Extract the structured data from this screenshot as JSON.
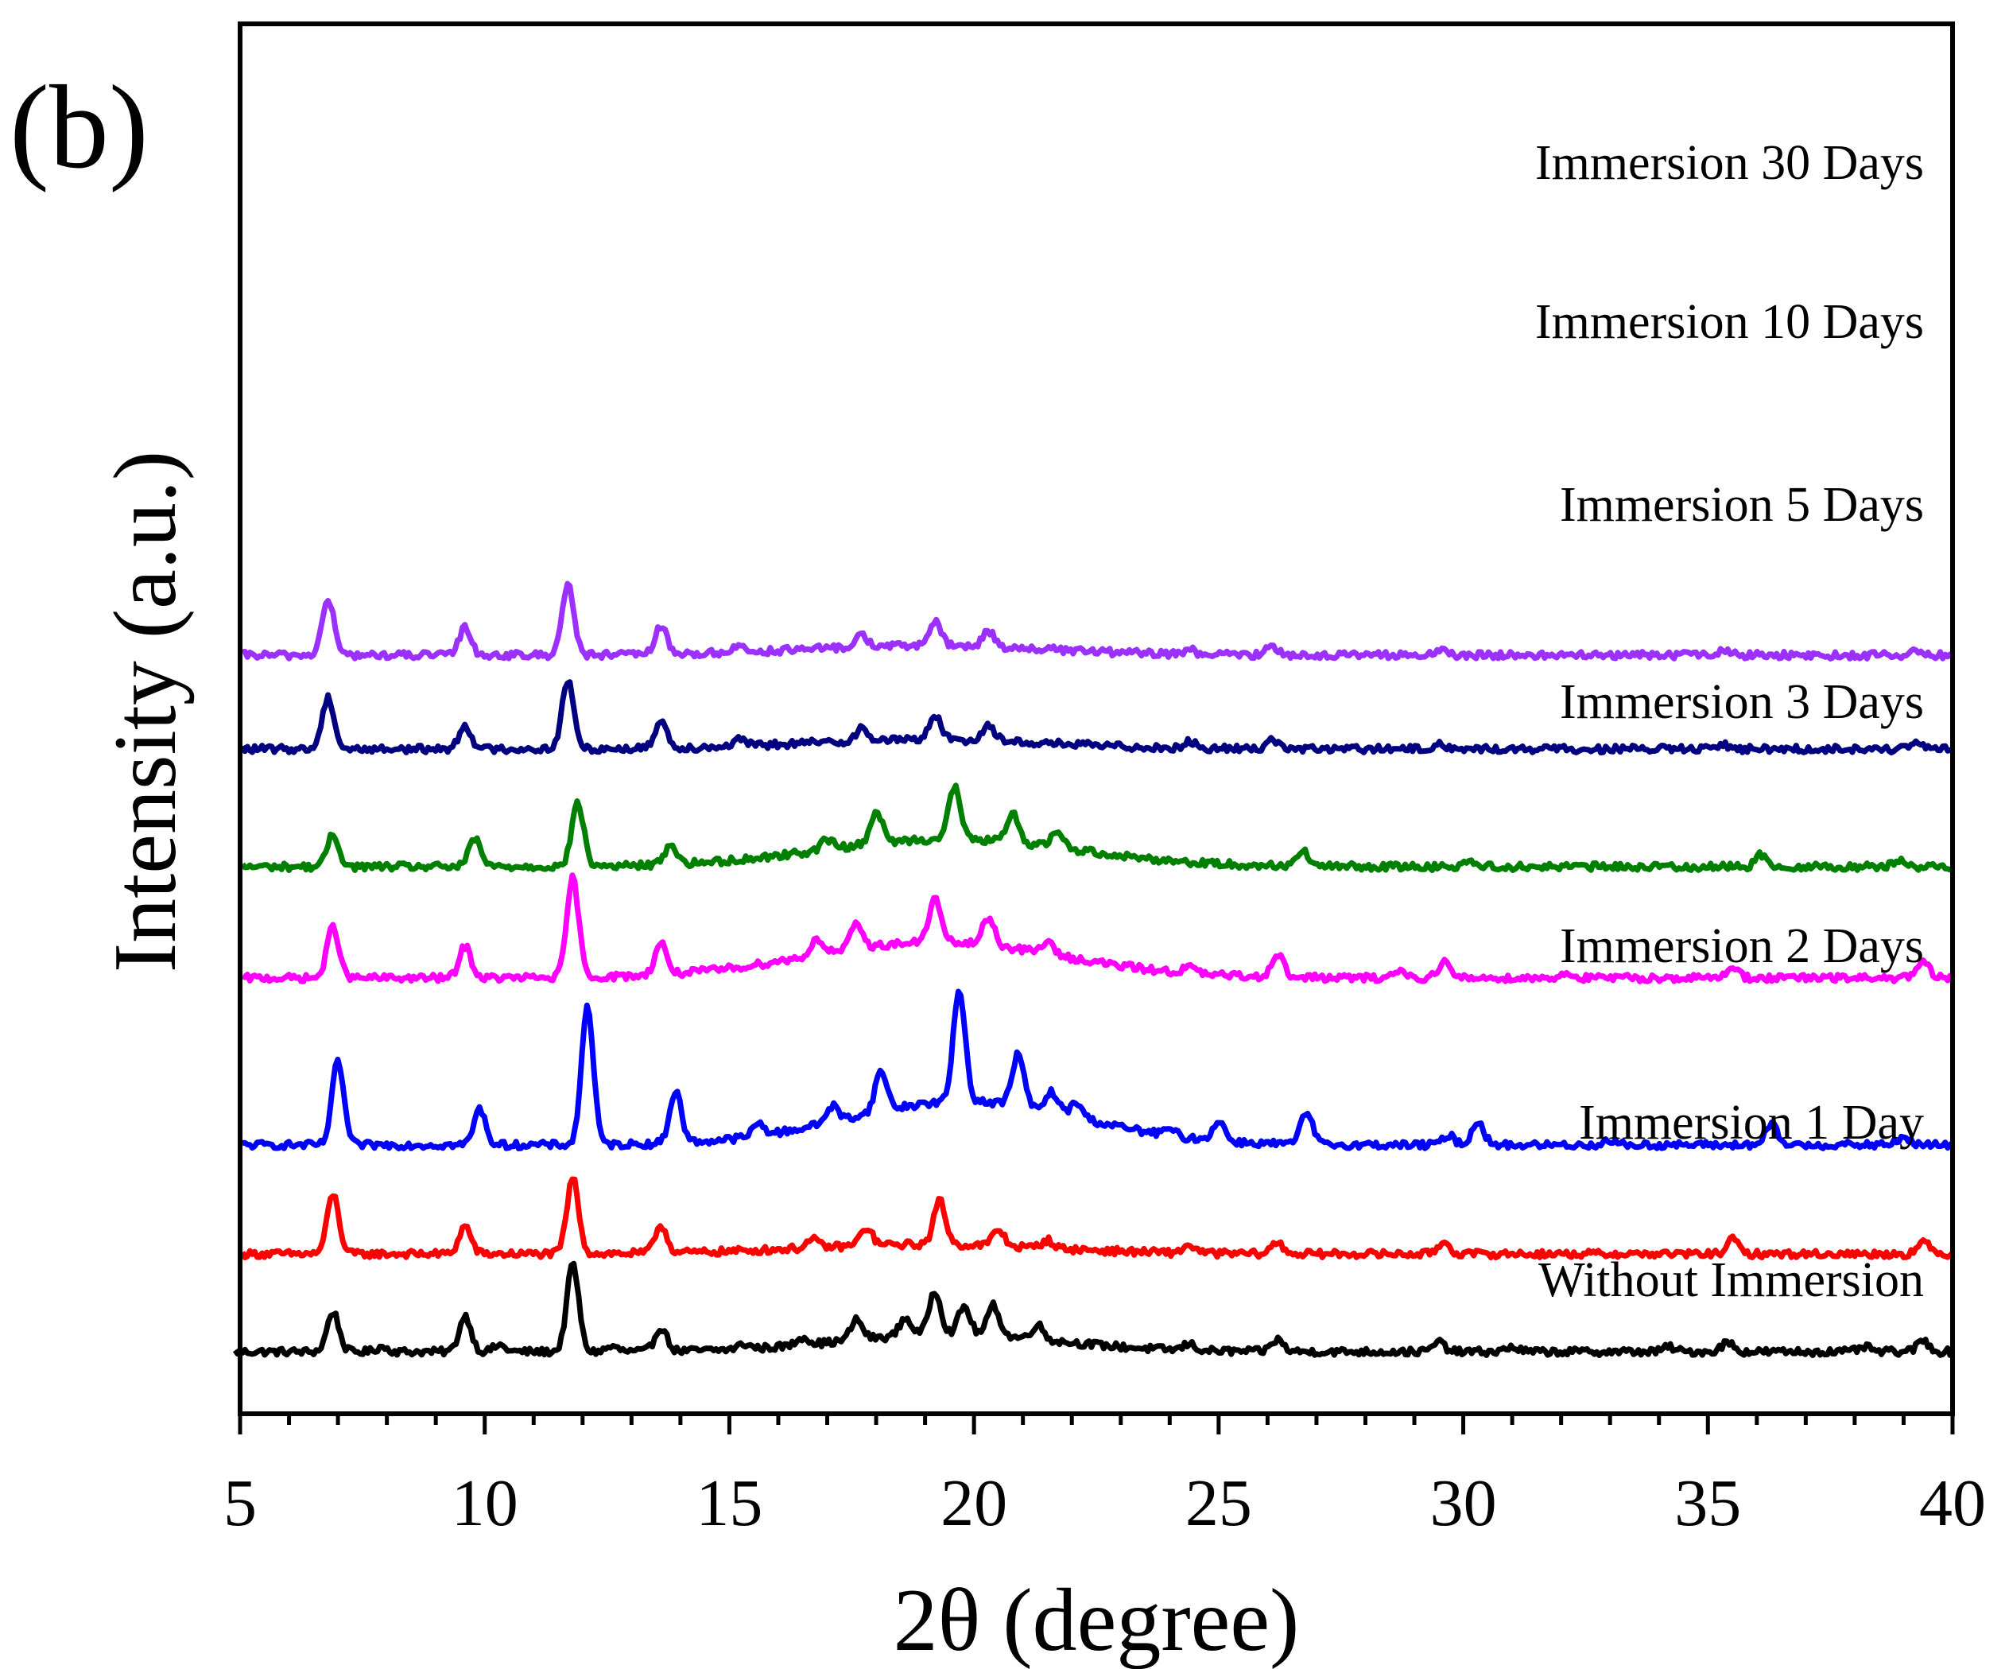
{
  "panel_label": "(b)",
  "chart_data": {
    "type": "line",
    "title": "",
    "xlabel": "2θ (degree)",
    "ylabel": "Intensity (a.u.)",
    "xlim": [
      5,
      40
    ],
    "x_ticks": [
      5,
      10,
      15,
      20,
      25,
      30,
      35,
      40
    ],
    "x_tick_labels": [
      "5",
      "10",
      "15",
      "20",
      "25",
      "30",
      "35",
      "40"
    ],
    "y_ticks": [],
    "grid": false,
    "legend": "inline labels at right of each curve",
    "series": [
      {
        "name": "Without Immersion",
        "color": "#000000",
        "offset": 0,
        "baseline": 10,
        "peaks": [
          [
            6.9,
            50
          ],
          [
            7.9,
            6
          ],
          [
            9.6,
            45
          ],
          [
            10.3,
            8
          ],
          [
            11.8,
            110
          ],
          [
            12.6,
            6
          ],
          [
            13.6,
            30
          ],
          [
            15.3,
            6
          ],
          [
            16.5,
            10
          ],
          [
            17.6,
            25
          ],
          [
            18.6,
            22
          ],
          [
            19.2,
            55
          ],
          [
            19.8,
            35
          ],
          [
            20.4,
            38
          ],
          [
            21.3,
            18
          ],
          [
            24.4,
            8
          ],
          [
            26.2,
            15
          ],
          [
            29.5,
            12
          ],
          [
            31.0,
            6
          ],
          [
            34.2,
            6
          ],
          [
            35.4,
            12
          ],
          [
            38.2,
            6
          ],
          [
            39.4,
            14
          ]
        ],
        "hump": {
          "center": 19.5,
          "height": 22,
          "width": 2.2
        },
        "label": "Without Immersion"
      },
      {
        "name": "Immersion 1 Day",
        "color": "#ff0000",
        "offset": 125,
        "baseline": 8,
        "peaks": [
          [
            6.9,
            75
          ],
          [
            9.6,
            35
          ],
          [
            11.8,
            95
          ],
          [
            13.6,
            35
          ],
          [
            16.7,
            10
          ],
          [
            17.8,
            22
          ],
          [
            19.3,
            55
          ],
          [
            20.5,
            20
          ],
          [
            21.5,
            10
          ],
          [
            24.4,
            10
          ],
          [
            26.2,
            14
          ],
          [
            29.6,
            15
          ],
          [
            35.5,
            18
          ],
          [
            39.4,
            15
          ]
        ],
        "hump": {
          "center": 19.0,
          "height": 12,
          "width": 2.5
        },
        "label": "Immersion 1 Day"
      },
      {
        "name": "Immersion 2 Days",
        "color": "#0000ff",
        "offset": 260,
        "baseline": 10,
        "peaks": [
          [
            7.0,
            105
          ],
          [
            9.9,
            45
          ],
          [
            12.1,
            175
          ],
          [
            13.9,
            65
          ],
          [
            15.6,
            15
          ],
          [
            17.1,
            20
          ],
          [
            18.1,
            50
          ],
          [
            19.7,
            140
          ],
          [
            20.9,
            65
          ],
          [
            21.6,
            25
          ],
          [
            22.1,
            18
          ],
          [
            24.0,
            8
          ],
          [
            25.0,
            25
          ],
          [
            26.8,
            40
          ],
          [
            29.7,
            12
          ],
          [
            30.3,
            30
          ],
          [
            33.0,
            6
          ],
          [
            36.3,
            25
          ],
          [
            39.0,
            10
          ]
        ],
        "hump": {
          "center": 19.8,
          "height": 55,
          "width": 2.4
        },
        "label": "Immersion 2 Days"
      },
      {
        "name": "Immersion 3 Days",
        "color": "#ff00ff",
        "offset": 470,
        "baseline": 10,
        "peaks": [
          [
            6.9,
            65
          ],
          [
            9.6,
            40
          ],
          [
            11.8,
            125
          ],
          [
            13.6,
            40
          ],
          [
            16.8,
            20
          ],
          [
            17.6,
            30
          ],
          [
            19.2,
            55
          ],
          [
            20.3,
            35
          ],
          [
            21.5,
            15
          ],
          [
            24.4,
            8
          ],
          [
            26.2,
            30
          ],
          [
            28.7,
            10
          ],
          [
            29.6,
            20
          ],
          [
            32.1,
            6
          ],
          [
            35.5,
            15
          ],
          [
            39.4,
            20
          ]
        ],
        "hump": {
          "center": 19.2,
          "height": 45,
          "width": 2.6
        },
        "label": "Immersion 3 Days"
      },
      {
        "name": "Immersion 5 Days",
        "color": "#008000",
        "offset": 610,
        "baseline": 10,
        "peaks": [
          [
            6.9,
            40
          ],
          [
            9.8,
            35
          ],
          [
            11.9,
            80
          ],
          [
            13.8,
            25
          ],
          [
            17.0,
            12
          ],
          [
            18.0,
            40
          ],
          [
            19.6,
            65
          ],
          [
            20.8,
            35
          ],
          [
            21.7,
            20
          ],
          [
            26.7,
            20
          ],
          [
            30.1,
            8
          ],
          [
            36.1,
            15
          ],
          [
            38.9,
            8
          ]
        ],
        "hump": {
          "center": 19.5,
          "height": 35,
          "width": 2.6
        },
        "label": "Immersion 5 Days"
      },
      {
        "name": "Immersion 10 Days",
        "color": "#000080",
        "offset": 760,
        "baseline": 8,
        "peaks": [
          [
            6.8,
            65
          ],
          [
            9.6,
            30
          ],
          [
            11.7,
            85
          ],
          [
            13.6,
            35
          ],
          [
            15.2,
            8
          ],
          [
            17.7,
            15
          ],
          [
            19.2,
            30
          ],
          [
            20.3,
            20
          ],
          [
            24.4,
            8
          ],
          [
            26.1,
            12
          ],
          [
            29.5,
            6
          ],
          [
            35.3,
            6
          ],
          [
            39.3,
            6
          ]
        ],
        "hump": {
          "center": 19.0,
          "height": 12,
          "width": 2.5
        },
        "label": "Immersion 10 Days"
      },
      {
        "name": "Immersion 30 Days",
        "color": "#9b30ff",
        "offset": 878,
        "baseline": 8,
        "peaks": [
          [
            6.8,
            70
          ],
          [
            9.6,
            35
          ],
          [
            11.7,
            90
          ],
          [
            13.6,
            35
          ],
          [
            15.2,
            8
          ],
          [
            17.7,
            15
          ],
          [
            19.2,
            30
          ],
          [
            20.3,
            20
          ],
          [
            24.4,
            6
          ],
          [
            26.1,
            12
          ],
          [
            29.5,
            6
          ],
          [
            35.3,
            6
          ],
          [
            39.3,
            6
          ]
        ],
        "hump": {
          "center": 19.0,
          "height": 12,
          "width": 2.5
        },
        "label": "Immersion 30 Days"
      }
    ]
  }
}
